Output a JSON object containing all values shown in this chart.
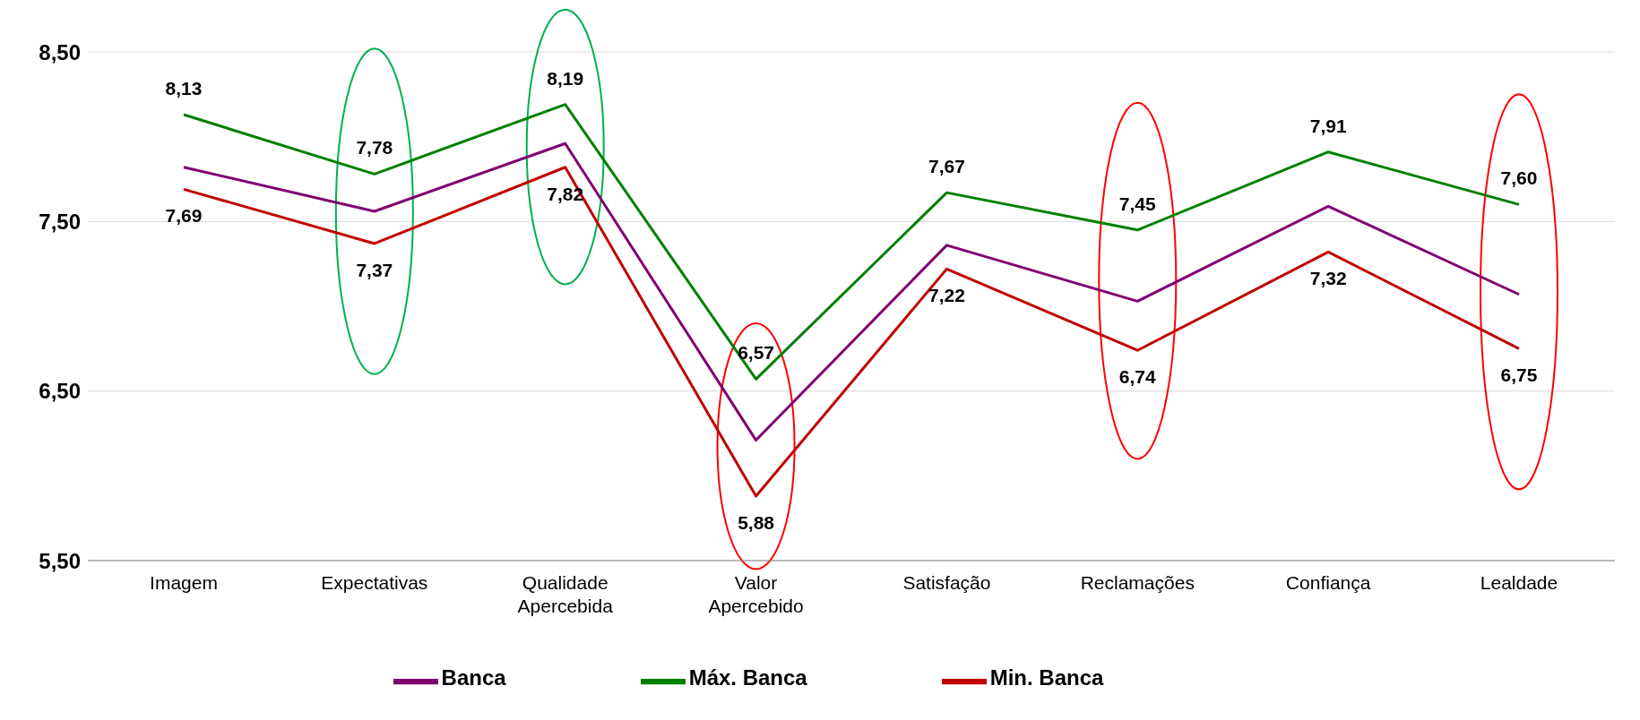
{
  "chart_data": {
    "type": "line",
    "categories": [
      "Imagem",
      "Expectativas",
      "Qualidade Apercebida",
      "Valor Apercebido",
      "Satisfação",
      "Reclamações",
      "Confiança",
      "Lealdade"
    ],
    "series": [
      {
        "name": "Banca",
        "color": "#800070",
        "values": [
          7.82,
          7.56,
          7.96,
          6.21,
          7.36,
          7.03,
          7.59,
          7.07
        ]
      },
      {
        "name": "Máx. Banca",
        "color": "#008000",
        "values": [
          8.13,
          7.78,
          8.19,
          6.57,
          7.67,
          7.45,
          7.91,
          7.6
        ],
        "value_labels": [
          "8,13",
          "7,78",
          "8,19",
          "6,57",
          "7,67",
          "7,45",
          "7,91",
          "7,60"
        ]
      },
      {
        "name": "Min. Banca",
        "color": "#c00000",
        "values": [
          7.69,
          7.37,
          7.82,
          5.88,
          7.22,
          6.74,
          7.32,
          6.75
        ],
        "value_labels": [
          "7,69",
          "7,37",
          "7,82",
          "5,88",
          "7,22",
          "6,74",
          "7,32",
          "6,75"
        ]
      }
    ],
    "ylim": [
      5.5,
      8.5
    ],
    "yticks": [
      {
        "value": 5.5,
        "label": "5,50"
      },
      {
        "value": 6.5,
        "label": "6,50"
      },
      {
        "value": 7.5,
        "label": "7,50"
      },
      {
        "value": 8.5,
        "label": "8,50"
      }
    ],
    "grid": "y",
    "legend": "bottom",
    "marker": "none",
    "line_style": "solid"
  }
}
